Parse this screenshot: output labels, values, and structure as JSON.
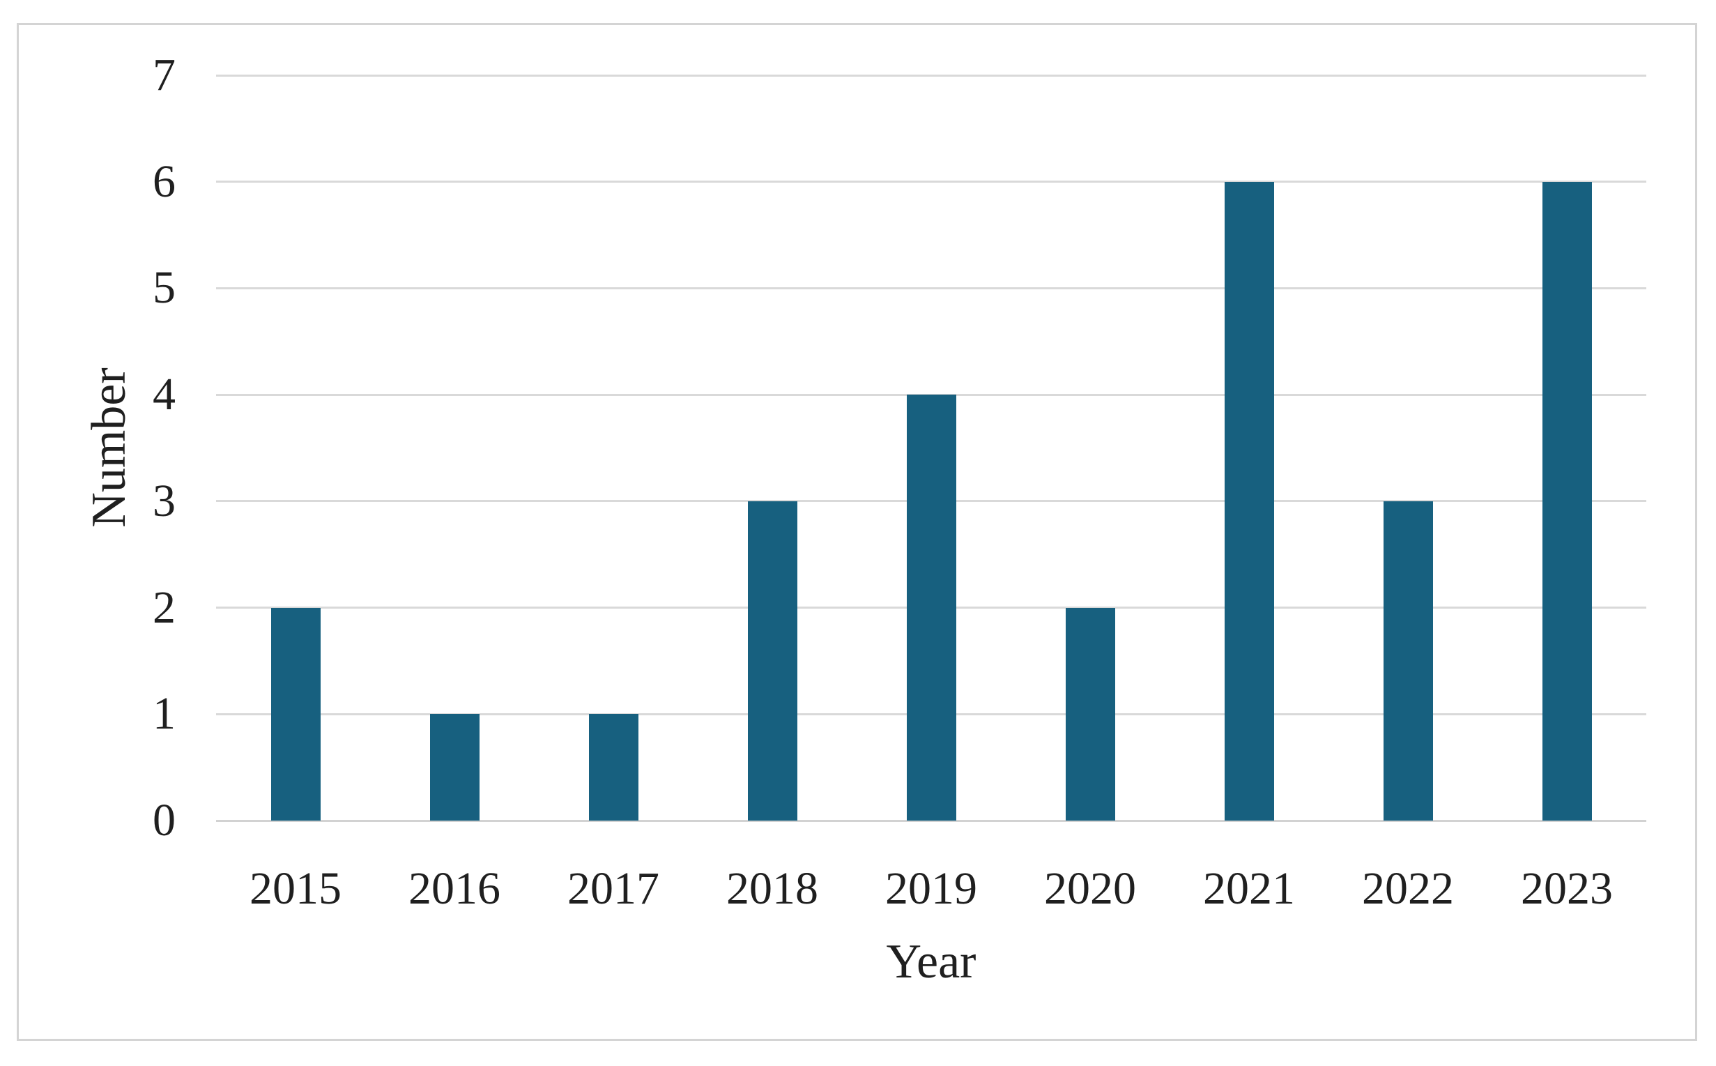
{
  "chart_data": {
    "type": "bar",
    "title": "",
    "categories": [
      "2015",
      "2016",
      "2017",
      "2018",
      "2019",
      "2020",
      "2021",
      "2022",
      "2023"
    ],
    "values": [
      2,
      1,
      1,
      3,
      4,
      2,
      6,
      3,
      6
    ],
    "xlabel": "Year",
    "ylabel": "Number",
    "ylim": [
      0,
      7
    ],
    "yticks": [
      0,
      1,
      2,
      3,
      4,
      5,
      6,
      7
    ],
    "grid": true,
    "legend_position": "none",
    "colors": {
      "bar": "#17607F",
      "gridline": "#D9D9D9",
      "baseline": "#D2D2D2",
      "text": "#1F1F1F",
      "frame_border": "#D4D4D4",
      "background": "#FFFFFF"
    }
  }
}
